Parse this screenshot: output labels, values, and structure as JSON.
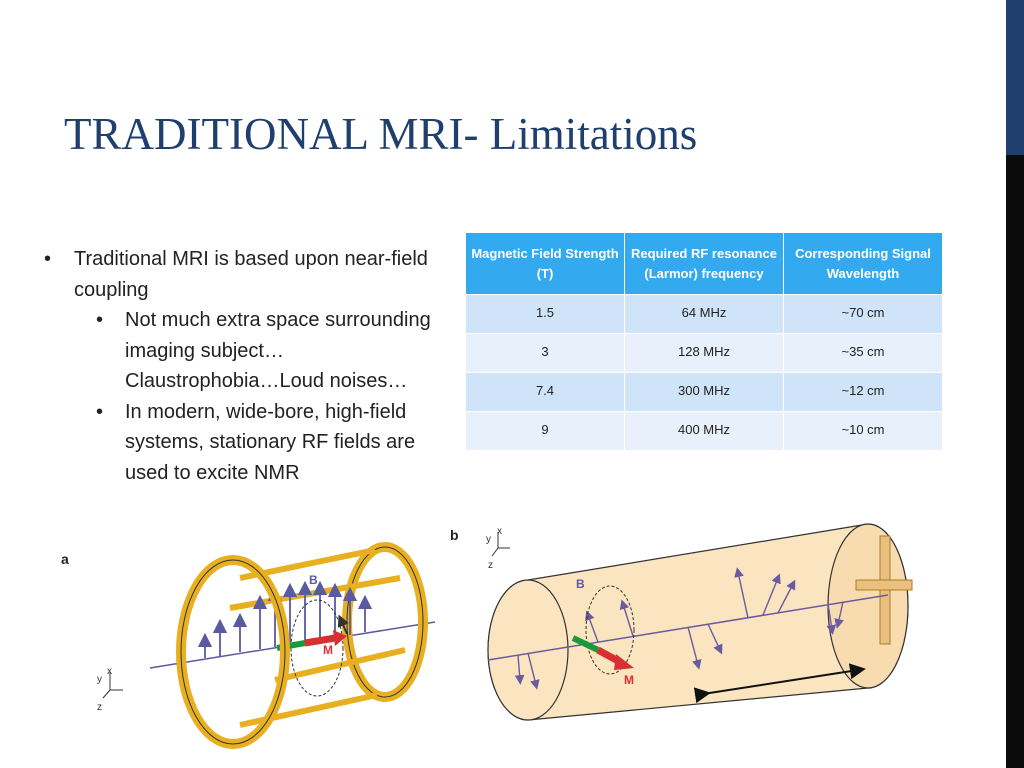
{
  "slide": {
    "title": "TRADITIONAL MRI- Limitations",
    "bullets": {
      "main": "Traditional MRI is based upon near-field coupling",
      "sub1": "Not much extra space surrounding imaging subject…Claustrophobia…Loud noises…",
      "sub2": "In modern, wide-bore, high-field systems, stationary RF fields are used to excite NMR"
    }
  },
  "table": {
    "headers": [
      "Magnetic Field Strength (T)",
      "Required RF resonance (Larmor) frequency",
      "Corresponding Signal Wavelength"
    ],
    "rows": [
      [
        "1.5",
        "64 MHz",
        "~70 cm"
      ],
      [
        "3",
        "128 MHz",
        "~35 cm"
      ],
      [
        "7.4",
        "300 MHz",
        "~12 cm"
      ],
      [
        "9",
        "400 MHz",
        "~10 cm"
      ]
    ]
  },
  "figure": {
    "panel_a": "a",
    "panel_b": "b",
    "label_B": "B",
    "label_M": "M",
    "axis_x": "x",
    "axis_y": "y",
    "axis_z": "z"
  },
  "colors": {
    "title": "#1f3f6e",
    "header_bg": "#33aaf0",
    "row_odd": "#cfe4f8",
    "row_even": "#e8f1fb",
    "coil": "#e8b020",
    "cylinder": "#fbe4c0",
    "field_arrow": "#5a5aa0"
  }
}
